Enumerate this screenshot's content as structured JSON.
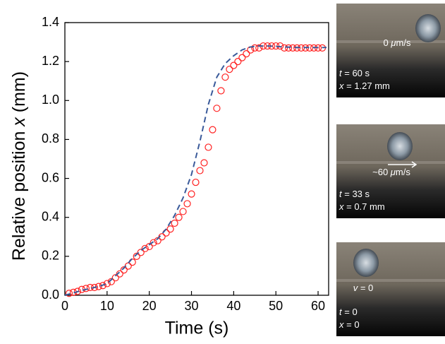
{
  "chart_data": {
    "type": "scatter",
    "x_label": "Time (s)",
    "y_label": [
      "Relative position ",
      "x",
      " (mm)"
    ],
    "xlim": [
      0,
      62.5
    ],
    "ylim": [
      0,
      1.4
    ],
    "xticks": [
      0,
      10,
      20,
      30,
      40,
      50,
      60
    ],
    "yticks": [
      {
        "value": 0,
        "label": "0.0"
      },
      0.2,
      0.4,
      0.6,
      0.8,
      {
        "value": 1,
        "label": "1.0"
      },
      1.2,
      1.4
    ],
    "series": [
      {
        "color": "#ff2020",
        "marker": "circle",
        "x": [
          1,
          2,
          3,
          4,
          5,
          6,
          7,
          8,
          9,
          10,
          11,
          12,
          13,
          14,
          15,
          16,
          17,
          18,
          19,
          20,
          21,
          22,
          23,
          24,
          25,
          26,
          27,
          28,
          29,
          30,
          31,
          32,
          33,
          34,
          35,
          36,
          37,
          38,
          39,
          40,
          41,
          42,
          43,
          44,
          45,
          46,
          47,
          48,
          49,
          50,
          51,
          52,
          53,
          54,
          55,
          56,
          57,
          58,
          59,
          60,
          61
        ],
        "values": [
          0.01,
          0.015,
          0.02,
          0.03,
          0.035,
          0.04,
          0.04,
          0.045,
          0.05,
          0.06,
          0.07,
          0.09,
          0.11,
          0.13,
          0.15,
          0.17,
          0.2,
          0.22,
          0.24,
          0.25,
          0.27,
          0.28,
          0.3,
          0.32,
          0.34,
          0.37,
          0.4,
          0.43,
          0.47,
          0.52,
          0.58,
          0.64,
          0.68,
          0.76,
          0.85,
          0.96,
          1.05,
          1.12,
          1.16,
          1.18,
          1.2,
          1.22,
          1.24,
          1.26,
          1.27,
          1.27,
          1.28,
          1.28,
          1.28,
          1.28,
          1.28,
          1.27,
          1.27,
          1.27,
          1.27,
          1.27,
          1.27,
          1.27,
          1.27,
          1.27,
          1.27
        ]
      },
      {
        "color": "#3a5a9a",
        "style": "dashed",
        "x": [
          0,
          2,
          4,
          6,
          8,
          10,
          12,
          14,
          16,
          18,
          20,
          22,
          24,
          26,
          28,
          30,
          32,
          34,
          36,
          38,
          40,
          42,
          44,
          46,
          48,
          50,
          52,
          54,
          56,
          58,
          60,
          62
        ],
        "values": [
          0,
          0.012,
          0.025,
          0.035,
          0.045,
          0.06,
          0.1,
          0.14,
          0.19,
          0.23,
          0.26,
          0.29,
          0.34,
          0.41,
          0.5,
          0.62,
          0.79,
          0.98,
          1.12,
          1.19,
          1.23,
          1.26,
          1.275,
          1.28,
          1.28,
          1.278,
          1.275,
          1.273,
          1.272,
          1.272,
          1.272,
          1.272
        ]
      }
    ]
  },
  "panels": [
    {
      "speed": [
        "0 ",
        "μ",
        "m/s"
      ],
      "time": [
        "t",
        " = 60 s"
      ],
      "position": [
        "x",
        " = 1.27 mm"
      ]
    },
    {
      "speed": [
        "~60 ",
        "μ",
        "m/s"
      ],
      "time": [
        "t",
        " = 33 s"
      ],
      "position": [
        "x",
        " = 0.7 mm"
      ]
    },
    {
      "speed": [
        "v",
        " = 0"
      ],
      "time": [
        "t",
        " = 0"
      ],
      "position": [
        "x",
        " = 0"
      ]
    }
  ]
}
